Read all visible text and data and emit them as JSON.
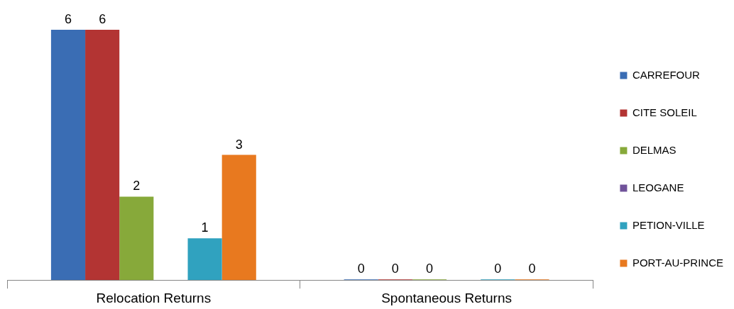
{
  "chart_data": {
    "type": "bar",
    "categories": [
      "Relocation Returns",
      "Spontaneous Returns"
    ],
    "series": [
      {
        "name": "CARREFOUR",
        "color": "#3a6db4",
        "values": [
          6,
          0
        ]
      },
      {
        "name": "CITE SOLEIL",
        "color": "#b33433",
        "values": [
          6,
          0
        ]
      },
      {
        "name": "DELMAS",
        "color": "#87a93a",
        "values": [
          2,
          0
        ]
      },
      {
        "name": "LEOGANE",
        "color": "#70529a",
        "values": [
          null,
          null
        ]
      },
      {
        "name": "PETION-VILLE",
        "color": "#30a2bf",
        "values": [
          1,
          0
        ]
      },
      {
        "name": "PORT-AU-PRINCE",
        "color": "#e8791f",
        "values": [
          3,
          0
        ]
      }
    ],
    "ylim": [
      0,
      6
    ],
    "tick_labels": "x",
    "legend": "right",
    "data_labels": true
  }
}
